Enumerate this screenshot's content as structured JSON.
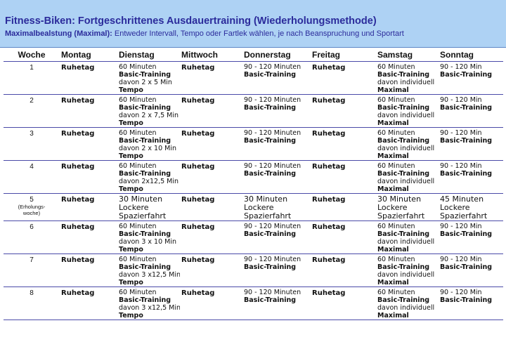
{
  "header": {
    "title": "Fitness-Biken: Fortgeschrittenes Ausdauertraining (Wiederholungsmethode)",
    "subtitle_bold": "Maximalbealstung (Maximal):",
    "subtitle_text": " Entweder Intervall, Tempo oder Fartlek wählen, je nach Beanspruchung und Sportart"
  },
  "columns": [
    "Woche",
    "Montag",
    "Dienstag",
    "Mittwoch",
    "Donnerstag",
    "Freitag",
    "Samstag",
    "Sonntag"
  ],
  "rest": "Ruhetag",
  "rows": [
    {
      "week": "1",
      "tue": {
        "l1": "60 Minuten",
        "b1": "Basic-Training",
        "l2": "davon 2 x 5 Min",
        "b2": "Tempo"
      },
      "thu": {
        "l1": "90 - 120 Minuten",
        "b1": "Basic-Training"
      },
      "sat": {
        "l1": "60 Minuten",
        "b1": "Basic-Training",
        "l2": "davon individuell",
        "b2": "Maximal"
      },
      "sun": {
        "l1": "90 - 120 Min",
        "b1": "Basic-Training"
      }
    },
    {
      "week": "2",
      "tue": {
        "l1": "60 Minuten",
        "b1": "Basic-Training",
        "l2": "davon 2 x 7,5 Min",
        "b2": "Tempo"
      },
      "thu": {
        "l1": "90 - 120 Minuten",
        "b1": "Basic-Training"
      },
      "sat": {
        "l1": "60 Minuten",
        "b1": "Basic-Training",
        "l2": "davon individuell",
        "b2": "Maximal"
      },
      "sun": {
        "l1": "90 - 120 Min",
        "b1": "Basic-Training"
      }
    },
    {
      "week": "3",
      "tue": {
        "l1": "60 Minuten",
        "b1": "Basic-Training",
        "l2": "davon 2 x 10 Min",
        "b2": "Tempo"
      },
      "thu": {
        "l1": "90 - 120 Minuten",
        "b1": "Basic-Training"
      },
      "sat": {
        "l1": "60 Minuten",
        "b1": "Basic-Training",
        "l2": "davon individuell",
        "b2": "Maximal"
      },
      "sun": {
        "l1": "90 - 120 Min",
        "b1": "Basic-Training"
      }
    },
    {
      "week": "4",
      "tue": {
        "l1": "60 Minuten",
        "b1": "Basic-Training",
        "l2": "davon 2x12,5 Min",
        "b2": "Tempo"
      },
      "thu": {
        "l1": "90 - 120 Minuten",
        "b1": "Basic-Training"
      },
      "sat": {
        "l1": "60 Minuten",
        "b1": "Basic-Training",
        "l2": "davon individuell",
        "b2": "Maximal"
      },
      "sun": {
        "l1": "90 - 120 Min",
        "b1": "Basic-Training"
      }
    },
    {
      "week": "5",
      "week_note_1": "(Erholungs-",
      "week_note_2": "woche)",
      "tue": {
        "l1": "30 Minuten",
        "l2": "Lockere",
        "l3": "Spazierfahrt"
      },
      "thu": {
        "l1": "30 Minuten",
        "l2": "Lockere",
        "l3": "Spazierfahrt"
      },
      "sat": {
        "l1": "30 Minuten",
        "l2": "Lockere",
        "l3": "Spazierfahrt"
      },
      "sun": {
        "l1": "45 Minuten",
        "l2": "Lockere",
        "l3": "Spazierfahrt"
      }
    },
    {
      "week": "6",
      "tue": {
        "l1": "60 Minuten",
        "b1": "Basic-Training",
        "l2": "davon 3 x 10 Min",
        "b2": "Tempo"
      },
      "thu": {
        "l1": "90 - 120 Minuten",
        "b1": "Basic-Training"
      },
      "sat": {
        "l1": "60 Minuten",
        "b1": "Basic-Training",
        "l2": "davon individuell",
        "b2": "Maximal"
      },
      "sun": {
        "l1": "90 - 120 Min",
        "b1": "Basic-Training"
      }
    },
    {
      "week": "7",
      "tue": {
        "l1": "60 Minuten",
        "b1": "Basic-Training",
        "l2": "davon 3 x12,5 Min",
        "b2": "Tempo"
      },
      "thu": {
        "l1": "90 - 120 Minuten",
        "b1": "Basic-Training"
      },
      "sat": {
        "l1": "60 Minuten",
        "b1": "Basic-Training",
        "l2": "davon individuell",
        "b2": "Maximal"
      },
      "sun": {
        "l1": "90 - 120 Min",
        "b1": "Basic-Training"
      }
    },
    {
      "week": "8",
      "tue": {
        "l1": "60 Minuten",
        "b1": "Basic-Training",
        "l2": "davon 3 x12,5 Min",
        "b2": "Tempo"
      },
      "thu": {
        "l1": "90 - 120 Minuten",
        "b1": "Basic-Training"
      },
      "sat": {
        "l1": "60 Minuten",
        "b1": "Basic-Training",
        "l2": "davon individuell",
        "b2": "Maximal"
      },
      "sun": {
        "l1": "90 - 120 Min",
        "b1": "Basic-Training"
      }
    }
  ]
}
